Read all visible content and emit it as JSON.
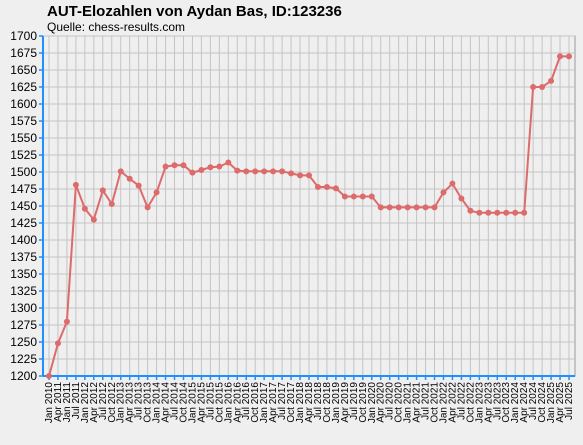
{
  "chart_data": {
    "type": "line",
    "title": "AUT-Elozahlen von Aydan Bas, ID:123236",
    "subtitle": "Quelle: chess-results.com",
    "xlabel": "",
    "ylabel": "",
    "ylim": [
      1200,
      1700
    ],
    "ytick_step": 25,
    "grid": true,
    "line_color": "#dd6b6b",
    "axis_color": "#1e90ff",
    "grid_color": "#c4c4c4",
    "categories": [
      "Jan 2010",
      "Apr 2011",
      "Jan 2011",
      "Jul 2011",
      "Jan 2012",
      "Apr 2012",
      "Jul 2012",
      "Oct 2012",
      "Jan 2013",
      "Apr 2013",
      "Jul 2013",
      "Oct 2013",
      "Jan 2014",
      "Apr 2014",
      "Jul 2014",
      "Oct 2014",
      "Jan 2015",
      "Apr 2015",
      "Jul 2015",
      "Oct 2015",
      "Jan 2016",
      "Apr 2016",
      "Jul 2016",
      "Oct 2016",
      "Jan 2017",
      "Apr 2017",
      "Jul 2017",
      "Oct 2017",
      "Jan 2018",
      "Apr 2018",
      "Jul 2018",
      "Oct 2018",
      "Jan 2019",
      "Apr 2019",
      "Jul 2019",
      "Oct 2019",
      "Jan 2020",
      "Apr 2020",
      "Jul 2020",
      "Oct 2020",
      "Jan 2021",
      "Apr 2021",
      "Jul 2021",
      "Oct 2021",
      "Jan 2022",
      "Apr 2022",
      "Jul 2022",
      "Oct 2022",
      "Jan 2023",
      "Apr 2023",
      "Jul 2023",
      "Oct 2023",
      "Jan 2024",
      "Apr 2024",
      "Jul 2024",
      "Oct 2024",
      "Jan 2025",
      "Apr 2025",
      "Jul 2025"
    ],
    "series": [
      {
        "values": [
          1200,
          1248,
          1280,
          1481,
          1446,
          1430,
          1473,
          1453,
          1501,
          1490,
          1480,
          1448,
          1470,
          1508,
          1510,
          1510,
          1499,
          1503,
          1507,
          1508,
          1514,
          1502,
          1501,
          1501,
          1501,
          1501,
          1501,
          1498,
          1495,
          1495,
          1478,
          1478,
          1476,
          1464,
          1464,
          1464,
          1464,
          1448,
          1448,
          1448,
          1448,
          1448,
          1448,
          1448,
          1470,
          1483,
          1461,
          1443,
          1440,
          1440,
          1440,
          1440,
          1440,
          1440,
          1625,
          1625,
          1634,
          1670,
          1670
        ]
      }
    ]
  }
}
